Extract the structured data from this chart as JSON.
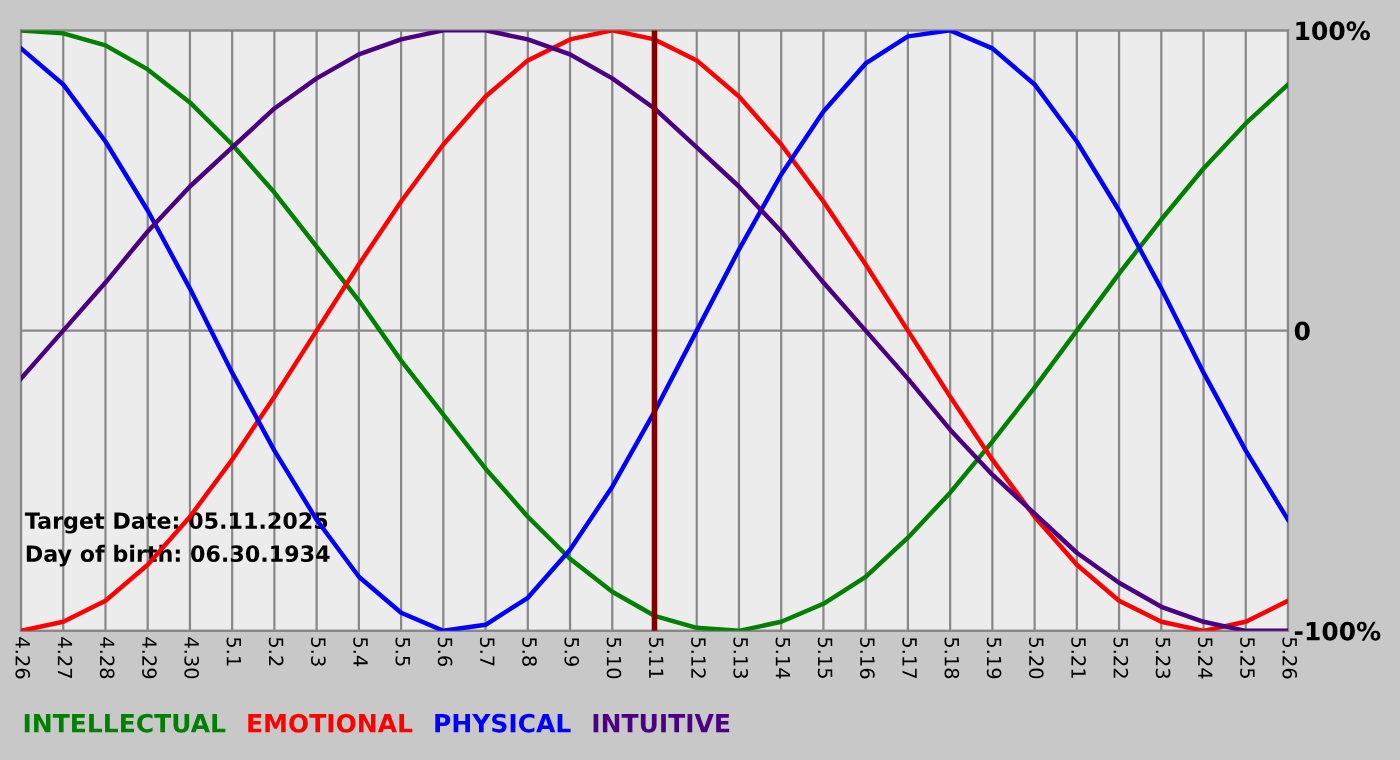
{
  "chart_data": {
    "type": "line",
    "categories": [
      "4.26",
      "4.27",
      "4.28",
      "4.29",
      "4.30",
      "5.1",
      "5.2",
      "5.3",
      "5.4",
      "5.5",
      "5.6",
      "5.7",
      "5.8",
      "5.9",
      "5.10",
      "5.11",
      "5.12",
      "5.13",
      "5.14",
      "5.15",
      "5.16",
      "5.17",
      "5.18",
      "5.19",
      "5.20",
      "5.21",
      "5.22",
      "5.23",
      "5.24",
      "5.25",
      "5.26"
    ],
    "series": [
      {
        "name": "INTELLECTUAL",
        "color": "#008000",
        "values": [
          100,
          99,
          95,
          87,
          76,
          62,
          46,
          28,
          10,
          -10,
          -28,
          -46,
          -62,
          -76,
          -87,
          -95,
          -99,
          -100,
          -97,
          -91,
          -82,
          -69,
          -54,
          -37,
          -19,
          0,
          19,
          37,
          54,
          69,
          82
        ]
      },
      {
        "name": "EMOTIONAL",
        "color": "#ff0000",
        "values": [
          -100,
          -97,
          -90,
          -78,
          -62,
          -43,
          -22,
          0,
          22,
          43,
          62,
          78,
          90,
          97,
          100,
          97,
          90,
          78,
          62,
          43,
          22,
          0,
          -22,
          -43,
          -62,
          -78,
          -90,
          -97,
          -100,
          -97,
          -90
        ]
      },
      {
        "name": "PHYSICAL",
        "color": "#0000ff",
        "values": [
          94,
          82,
          63,
          40,
          14,
          -14,
          -40,
          -63,
          -82,
          -94,
          -100,
          -98,
          -89,
          -73,
          -52,
          -27,
          0,
          27,
          52,
          73,
          89,
          98,
          100,
          94,
          82,
          63,
          40,
          14,
          -14,
          -40,
          -63
        ]
      },
      {
        "name": "INTUITIVE",
        "color": "#4b0082",
        "values": [
          -16,
          0,
          16,
          33,
          48,
          61,
          74,
          84,
          92,
          97,
          100,
          100,
          97,
          92,
          84,
          74,
          61,
          48,
          33,
          16,
          0,
          -16,
          -33,
          -48,
          -61,
          -74,
          -84,
          -92,
          -97,
          -100,
          -100
        ]
      }
    ],
    "ylim": [
      -100,
      100
    ],
    "yticks": [
      {
        "value": 100,
        "label": "100%"
      },
      0,
      {
        "value": -100,
        "label": "-100%"
      }
    ],
    "ref_lines": [
      {
        "axis": "x",
        "value": "5.11",
        "color": "#800000"
      }
    ],
    "annotations": [
      "Target Date: 05.11.2025",
      "Day of birth: 06.30.1934"
    ],
    "grid": true,
    "legend": "bottom left",
    "marker": "none",
    "line_style": "solid"
  }
}
